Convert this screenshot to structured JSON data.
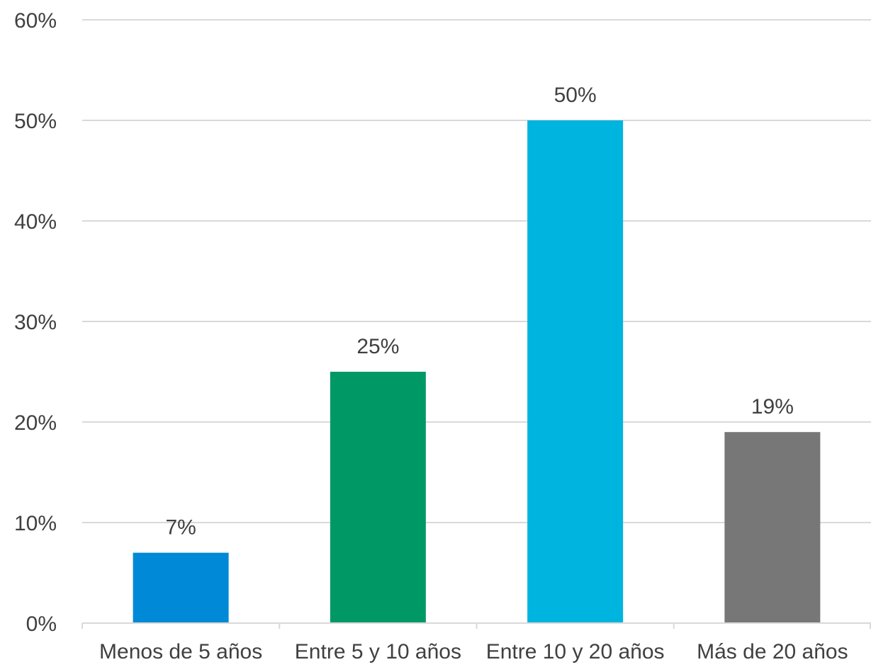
{
  "chart_data": {
    "type": "bar",
    "title": "",
    "xlabel": "",
    "ylabel": "",
    "categories": [
      "Menos de 5 años",
      "Entre 5 y 10 años",
      "Entre 10 y 20 años",
      "Más de 20 años"
    ],
    "values": [
      7,
      25,
      50,
      19
    ],
    "data_labels": [
      "7%",
      "25%",
      "50%",
      "19%"
    ],
    "colors": [
      "#0089d6",
      "#009966",
      "#00b4e0",
      "#777777"
    ],
    "ylim": [
      0,
      60
    ],
    "yticks": [
      0,
      10,
      20,
      30,
      40,
      50,
      60
    ],
    "ytick_labels": [
      "0%",
      "10%",
      "20%",
      "30%",
      "40%",
      "50%",
      "60%"
    ],
    "grid": true,
    "legend": false,
    "gridline_color": "#d9d9d9",
    "text_color": "#404040"
  }
}
